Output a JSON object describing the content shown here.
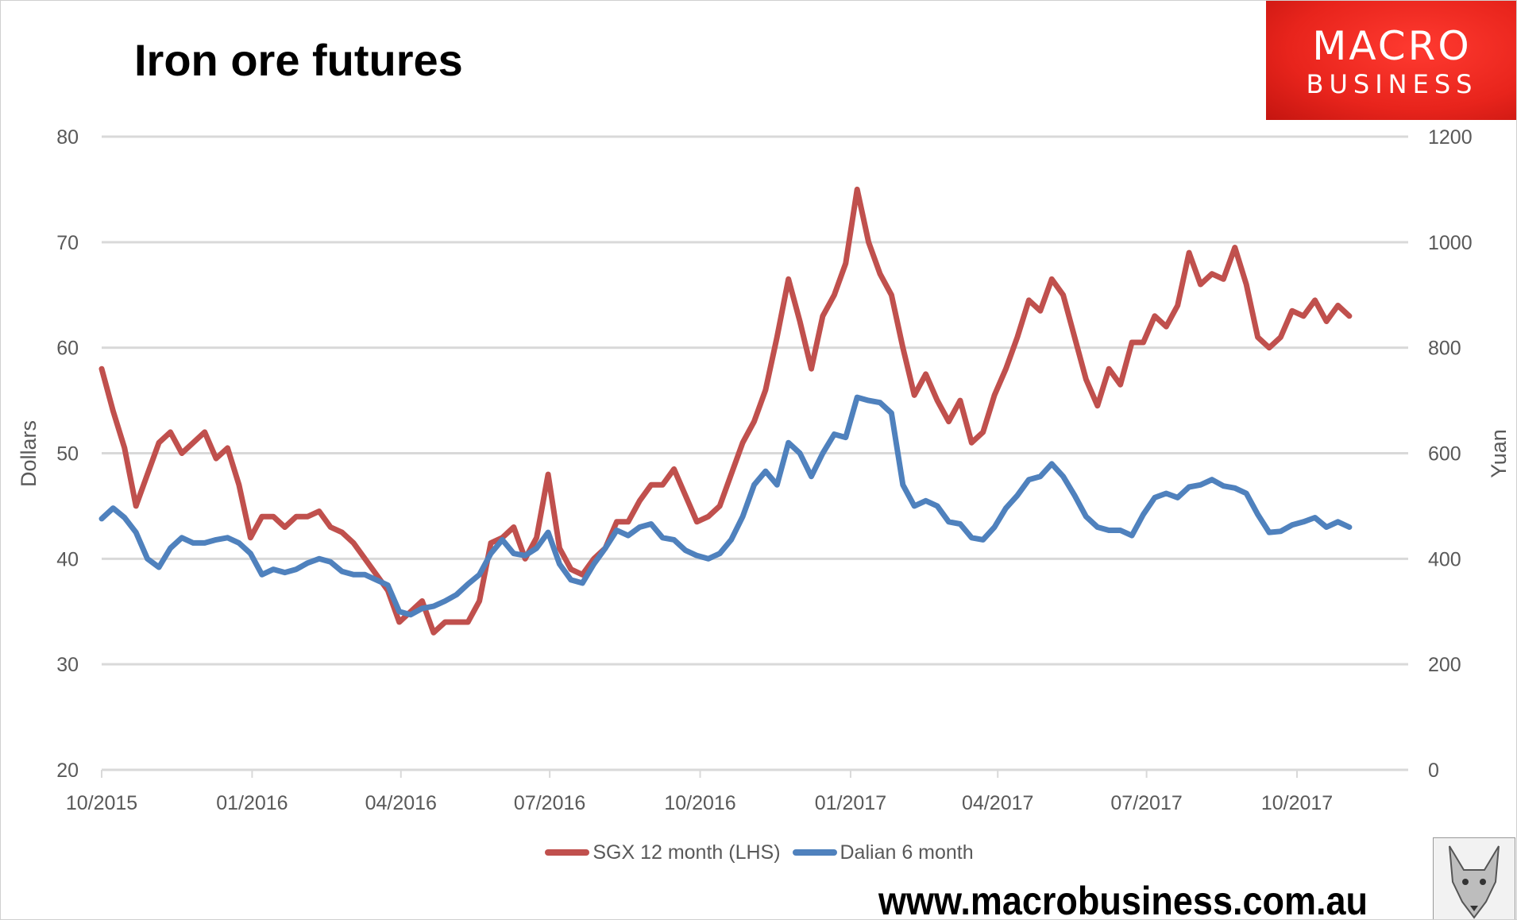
{
  "title": "Iron ore futures",
  "logo": {
    "line1": "MACRO",
    "line2": "BUSINESS",
    "color": "#E8241C"
  },
  "website": "www.macrobusiness.com.au",
  "chart_data": {
    "type": "line",
    "title": "Iron ore futures",
    "ylabel": "Dollars",
    "y2label": "Yuan",
    "ylim": [
      20,
      80
    ],
    "y2lim": [
      0,
      1200
    ],
    "yticks": [
      "20",
      "30",
      "40",
      "50",
      "60",
      "70",
      "80"
    ],
    "y2ticks": [
      "0",
      "200",
      "400",
      "600",
      "800",
      "1000",
      "1200"
    ],
    "xlim": [
      "2015-10-01",
      "2017-12-08"
    ],
    "xticks": [
      "10/2015",
      "01/2016",
      "04/2016",
      "07/2016",
      "10/2016",
      "01/2017",
      "04/2017",
      "07/2017",
      "10/2017"
    ],
    "grid": true,
    "legend": "bottom",
    "x": [
      "2015-10-01",
      "2015-10-08",
      "2015-10-15",
      "2015-10-22",
      "2015-10-29",
      "2015-11-05",
      "2015-11-12",
      "2015-11-19",
      "2015-11-26",
      "2015-12-03",
      "2015-12-10",
      "2015-12-17",
      "2015-12-24",
      "2015-12-31",
      "2016-01-07",
      "2016-01-14",
      "2016-01-21",
      "2016-01-28",
      "2016-02-04",
      "2016-02-11",
      "2016-02-18",
      "2016-02-25",
      "2016-03-03",
      "2016-03-10",
      "2016-03-17",
      "2016-03-24",
      "2016-03-31",
      "2016-04-07",
      "2016-04-14",
      "2016-04-21",
      "2016-04-28",
      "2016-05-05",
      "2016-05-12",
      "2016-05-19",
      "2016-05-26",
      "2016-06-02",
      "2016-06-09",
      "2016-06-16",
      "2016-06-23",
      "2016-06-30",
      "2016-07-07",
      "2016-07-14",
      "2016-07-21",
      "2016-07-28",
      "2016-08-04",
      "2016-08-11",
      "2016-08-18",
      "2016-08-25",
      "2016-09-01",
      "2016-09-08",
      "2016-09-15",
      "2016-09-22",
      "2016-09-29",
      "2016-10-06",
      "2016-10-13",
      "2016-10-20",
      "2016-10-27",
      "2016-11-03",
      "2016-11-10",
      "2016-11-17",
      "2016-11-24",
      "2016-12-01",
      "2016-12-08",
      "2016-12-15",
      "2016-12-22",
      "2016-12-29",
      "2017-01-05",
      "2017-01-12",
      "2017-01-19",
      "2017-01-26",
      "2017-02-02",
      "2017-02-09",
      "2017-02-16",
      "2017-02-23",
      "2017-03-02",
      "2017-03-09",
      "2017-03-16",
      "2017-03-23",
      "2017-03-30",
      "2017-04-06",
      "2017-04-13",
      "2017-04-20",
      "2017-04-27",
      "2017-05-04",
      "2017-05-11",
      "2017-05-18",
      "2017-05-25",
      "2017-06-01",
      "2017-06-08",
      "2017-06-15",
      "2017-06-22",
      "2017-06-29",
      "2017-07-06",
      "2017-07-13",
      "2017-07-20",
      "2017-07-27",
      "2017-08-03",
      "2017-08-10",
      "2017-08-17",
      "2017-08-24",
      "2017-08-31",
      "2017-09-07",
      "2017-09-14",
      "2017-09-21",
      "2017-09-28",
      "2017-10-05",
      "2017-10-12",
      "2017-10-19",
      "2017-10-26",
      "2017-11-02"
    ],
    "series": [
      {
        "name": "SGX 12 month (LHS)",
        "axis": "left",
        "color": "#C0504D",
        "values": [
          58,
          54,
          50.5,
          45,
          48,
          51,
          52,
          50,
          51,
          52,
          49.5,
          50.5,
          47,
          42,
          44,
          44,
          43,
          44,
          44,
          44.5,
          43,
          42.5,
          41.5,
          40,
          38.5,
          37,
          34,
          35,
          36,
          33,
          34,
          34,
          34,
          36,
          41.5,
          42,
          43,
          40,
          42,
          48,
          41,
          39,
          38.5,
          40,
          41,
          43.5,
          43.5,
          45.5,
          47,
          47,
          48.5,
          46,
          43.5,
          44,
          45,
          48,
          51,
          53,
          56,
          61,
          66.5,
          62.5,
          58,
          63,
          65,
          68,
          75,
          70,
          67,
          65,
          60,
          55.5,
          57.5,
          55,
          53,
          55,
          51,
          52,
          55.5,
          58,
          61,
          64.5,
          63.5,
          66.5,
          65,
          61,
          57,
          54.5,
          58,
          56.5,
          60.5,
          60.5,
          63,
          62,
          64,
          69,
          66,
          67,
          66.5,
          69.5,
          66,
          61,
          60,
          61,
          63.5,
          63,
          64.5,
          62.5,
          64,
          63
        ]
      },
      {
        "name": "Dalian 6 month",
        "axis": "right",
        "color": "#4F81BD",
        "values": [
          476,
          496,
          478,
          450,
          400,
          384,
          420,
          440,
          430,
          430,
          436,
          440,
          430,
          410,
          370,
          380,
          374,
          380,
          392,
          400,
          394,
          376,
          370,
          370,
          360,
          350,
          300,
          294,
          306,
          310,
          320,
          332,
          352,
          370,
          410,
          436,
          410,
          406,
          420,
          450,
          390,
          360,
          354,
          390,
          420,
          454,
          444,
          460,
          466,
          440,
          436,
          416,
          406,
          400,
          410,
          436,
          480,
          540,
          566,
          540,
          620,
          600,
          556,
          600,
          636,
          630,
          706,
          700,
          696,
          676,
          540,
          500,
          510,
          500,
          470,
          466,
          440,
          436,
          460,
          496,
          520,
          550,
          556,
          580,
          556,
          520,
          480,
          460,
          454,
          454,
          444,
          484,
          516,
          524,
          516,
          536,
          540,
          550,
          538,
          534,
          524,
          484,
          450,
          452,
          464,
          470,
          478,
          460,
          470,
          460
        ]
      }
    ]
  }
}
